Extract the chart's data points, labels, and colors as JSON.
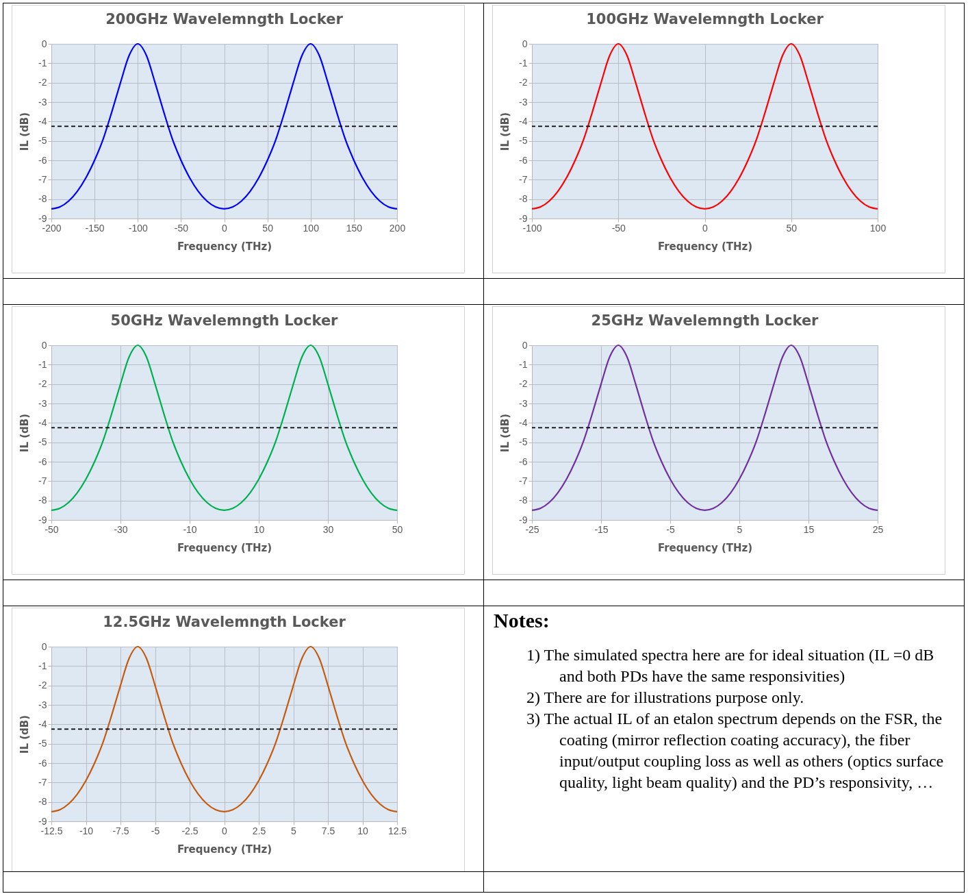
{
  "chart_data": [
    {
      "type": "line",
      "title": "200GHz Wavelemngth Locker",
      "xlabel": "Frequency (THz)",
      "ylabel": "IL (dB)",
      "x": [
        -200,
        -190,
        -180,
        -170,
        -160,
        -150,
        -140,
        -130,
        -120,
        -110,
        -100,
        -90,
        -80,
        -70,
        -60,
        -50,
        -40,
        -30,
        -20,
        -10,
        0,
        10,
        20,
        30,
        40,
        50,
        60,
        70,
        80,
        90,
        100,
        110,
        120,
        130,
        140,
        150,
        160,
        170,
        180,
        190,
        200
      ],
      "series": [
        {
          "color": "#0000ff",
          "values": [
            -8.5,
            -8.4,
            -8.1,
            -7.6,
            -6.9,
            -6.0,
            -4.9,
            -3.5,
            -2.0,
            -0.6,
            0,
            -0.6,
            -2.0,
            -3.5,
            -4.9,
            -6.0,
            -6.9,
            -7.6,
            -8.1,
            -8.4,
            -8.5,
            -8.4,
            -8.1,
            -7.6,
            -6.9,
            -6.0,
            -4.9,
            -3.5,
            -2.0,
            -0.6,
            0,
            -0.6,
            -2.0,
            -3.5,
            -4.9,
            -6.0,
            -6.9,
            -7.6,
            -8.1,
            -8.4,
            -8.5
          ]
        }
      ],
      "xlim": [
        -200,
        200
      ],
      "xticks": [
        -200,
        -150,
        -100,
        -50,
        0,
        50,
        100,
        150,
        200
      ],
      "ylim": [
        -9,
        0
      ],
      "yticks": [
        0,
        -1,
        -2,
        -3,
        -4,
        -5,
        -6,
        -7,
        -8,
        -9
      ],
      "grid": true,
      "ref_lines": [
        {
          "axis": "y",
          "value": -4.25,
          "color": "#000000",
          "line_style": "dashed"
        }
      ]
    },
    {
      "type": "line",
      "title": "100GHz Wavelemngth Locker",
      "xlabel": "Frequency (THz)",
      "ylabel": "IL (dB)",
      "x": [
        -100,
        -95,
        -90,
        -85,
        -80,
        -75,
        -70,
        -65,
        -60,
        -55,
        -50,
        -45,
        -40,
        -35,
        -30,
        -25,
        -20,
        -15,
        -10,
        -5,
        0,
        5,
        10,
        15,
        20,
        25,
        30,
        35,
        40,
        45,
        50,
        55,
        60,
        65,
        70,
        75,
        80,
        85,
        90,
        95,
        100
      ],
      "series": [
        {
          "color": "#ff0000",
          "values": [
            -8.5,
            -8.4,
            -8.1,
            -7.6,
            -6.9,
            -6.0,
            -4.9,
            -3.5,
            -2.0,
            -0.6,
            0,
            -0.6,
            -2.0,
            -3.5,
            -4.9,
            -6.0,
            -6.9,
            -7.6,
            -8.1,
            -8.4,
            -8.5,
            -8.4,
            -8.1,
            -7.6,
            -6.9,
            -6.0,
            -4.9,
            -3.5,
            -2.0,
            -0.6,
            0,
            -0.6,
            -2.0,
            -3.5,
            -4.9,
            -6.0,
            -6.9,
            -7.6,
            -8.1,
            -8.4,
            -8.5
          ]
        }
      ],
      "xlim": [
        -100,
        100
      ],
      "xticks": [
        -100,
        -50,
        0,
        50,
        100
      ],
      "ylim": [
        -9,
        0
      ],
      "yticks": [
        0,
        -1,
        -2,
        -3,
        -4,
        -5,
        -6,
        -7,
        -8,
        -9
      ],
      "grid": true,
      "ref_lines": [
        {
          "axis": "y",
          "value": -4.25,
          "color": "#000000",
          "line_style": "dashed"
        }
      ]
    },
    {
      "type": "line",
      "title": "50GHz Wavelemngth Locker",
      "xlabel": "Frequency (THz)",
      "ylabel": "IL (dB)",
      "x": [
        -50,
        -47.5,
        -45,
        -42.5,
        -40,
        -37.5,
        -35,
        -32.5,
        -30,
        -27.5,
        -25,
        -22.5,
        -20,
        -17.5,
        -15,
        -12.5,
        -10,
        -7.5,
        -5,
        -2.5,
        0,
        2.5,
        5,
        7.5,
        10,
        12.5,
        15,
        17.5,
        20,
        22.5,
        25,
        27.5,
        30,
        32.5,
        35,
        37.5,
        40,
        42.5,
        45,
        47.5,
        50
      ],
      "series": [
        {
          "color": "#00b050",
          "values": [
            -8.5,
            -8.4,
            -8.1,
            -7.6,
            -6.9,
            -6.0,
            -4.9,
            -3.5,
            -2.0,
            -0.6,
            0,
            -0.6,
            -2.0,
            -3.5,
            -4.9,
            -6.0,
            -6.9,
            -7.6,
            -8.1,
            -8.4,
            -8.5,
            -8.4,
            -8.1,
            -7.6,
            -6.9,
            -6.0,
            -4.9,
            -3.5,
            -2.0,
            -0.6,
            0,
            -0.6,
            -2.0,
            -3.5,
            -4.9,
            -6.0,
            -6.9,
            -7.6,
            -8.1,
            -8.4,
            -8.5
          ]
        }
      ],
      "xlim": [
        -50,
        50
      ],
      "xticks": [
        -50,
        -30,
        -10,
        10,
        30,
        50
      ],
      "ylim": [
        -9,
        0
      ],
      "yticks": [
        0,
        -1,
        -2,
        -3,
        -4,
        -5,
        -6,
        -7,
        -8,
        -9
      ],
      "grid": true,
      "ref_lines": [
        {
          "axis": "y",
          "value": -4.25,
          "color": "#000000",
          "line_style": "dashed"
        }
      ]
    },
    {
      "type": "line",
      "title": "25GHz Wavelemngth Locker",
      "xlabel": "Frequency (THz)",
      "ylabel": "IL (dB)",
      "x": [
        -25,
        -23.75,
        -22.5,
        -21.25,
        -20,
        -18.75,
        -17.5,
        -16.25,
        -15,
        -13.75,
        -12.5,
        -11.25,
        -10,
        -8.75,
        -7.5,
        -6.25,
        -5,
        -3.75,
        -2.5,
        -1.25,
        0,
        1.25,
        2.5,
        3.75,
        5,
        6.25,
        7.5,
        8.75,
        10,
        11.25,
        12.5,
        13.75,
        15,
        16.25,
        17.5,
        18.75,
        20,
        21.25,
        22.5,
        23.75,
        25
      ],
      "series": [
        {
          "color": "#7030a0",
          "values": [
            -8.5,
            -8.4,
            -8.1,
            -7.6,
            -6.9,
            -6.0,
            -4.9,
            -3.5,
            -2.0,
            -0.6,
            0,
            -0.6,
            -2.0,
            -3.5,
            -4.9,
            -6.0,
            -6.9,
            -7.6,
            -8.1,
            -8.4,
            -8.5,
            -8.4,
            -8.1,
            -7.6,
            -6.9,
            -6.0,
            -4.9,
            -3.5,
            -2.0,
            -0.6,
            0,
            -0.6,
            -2.0,
            -3.5,
            -4.9,
            -6.0,
            -6.9,
            -7.6,
            -8.1,
            -8.4,
            -8.5
          ]
        }
      ],
      "xlim": [
        -25,
        25
      ],
      "xticks": [
        -25,
        -15,
        -5,
        5,
        15,
        25
      ],
      "ylim": [
        -9,
        0
      ],
      "yticks": [
        0,
        -1,
        -2,
        -3,
        -4,
        -5,
        -6,
        -7,
        -8,
        -9
      ],
      "grid": true,
      "ref_lines": [
        {
          "axis": "y",
          "value": -4.25,
          "color": "#000000",
          "line_style": "dashed"
        }
      ]
    },
    {
      "type": "line",
      "title": "12.5GHz Wavelemngth Locker",
      "xlabel": "Frequency (THz)",
      "ylabel": "IL (dB)",
      "x": [
        -12.5,
        -11.875,
        -11.25,
        -10.625,
        -10,
        -9.375,
        -8.75,
        -8.125,
        -7.5,
        -6.875,
        -6.25,
        -5.625,
        -5,
        -4.375,
        -3.75,
        -3.125,
        -2.5,
        -1.875,
        -1.25,
        -0.625,
        0,
        0.625,
        1.25,
        1.875,
        2.5,
        3.125,
        3.75,
        4.375,
        5,
        5.625,
        6.25,
        6.875,
        7.5,
        8.125,
        8.75,
        9.375,
        10,
        10.625,
        11.25,
        11.875,
        12.5
      ],
      "series": [
        {
          "color": "#c55a11",
          "values": [
            -8.5,
            -8.4,
            -8.1,
            -7.6,
            -6.9,
            -6.0,
            -4.9,
            -3.5,
            -2.0,
            -0.6,
            0,
            -0.6,
            -2.0,
            -3.5,
            -4.9,
            -6.0,
            -6.9,
            -7.6,
            -8.1,
            -8.4,
            -8.5,
            -8.4,
            -8.1,
            -7.6,
            -6.9,
            -6.0,
            -4.9,
            -3.5,
            -2.0,
            -0.6,
            0,
            -0.6,
            -2.0,
            -3.5,
            -4.9,
            -6.0,
            -6.9,
            -7.6,
            -8.1,
            -8.4,
            -8.5
          ]
        }
      ],
      "xlim": [
        -12.5,
        12.5
      ],
      "xticks": [
        -12.5,
        -10,
        -7.5,
        -5,
        -2.5,
        0,
        2.5,
        5,
        7.5,
        10,
        12.5
      ],
      "ylim": [
        -9,
        0
      ],
      "yticks": [
        0,
        -1,
        -2,
        -3,
        -4,
        -5,
        -6,
        -7,
        -8,
        -9
      ],
      "grid": true,
      "ref_lines": [
        {
          "axis": "y",
          "value": -4.25,
          "color": "#000000",
          "line_style": "dashed"
        }
      ]
    },
    {
      "type": "other",
      "title": "Notes:",
      "annotations": [
        "1) The simulated spectra here are for ideal situation (IL =0 dB and both PDs have the same responsivities)",
        "2) There are for illustrations purpose only.",
        "3) The actual IL of an etalon spectrum depends on the FSR, the coating (mirror reflection coating accuracy), the fiber input/output coupling loss as well as others (optics surface quality, light beam quality) and the PD’s responsivity, …"
      ]
    }
  ]
}
